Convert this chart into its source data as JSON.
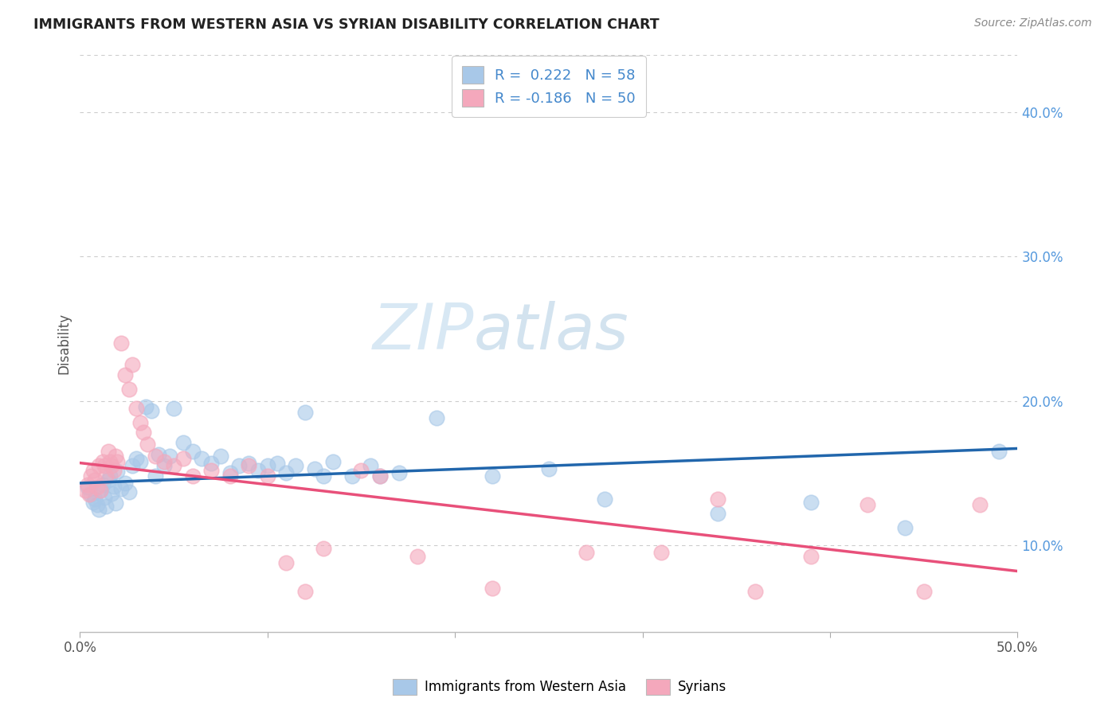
{
  "title": "IMMIGRANTS FROM WESTERN ASIA VS SYRIAN DISABILITY CORRELATION CHART",
  "source": "Source: ZipAtlas.com",
  "ylabel": "Disability",
  "right_yticks": [
    "10.0%",
    "20.0%",
    "30.0%",
    "40.0%"
  ],
  "right_ytick_vals": [
    0.1,
    0.2,
    0.3,
    0.4
  ],
  "xlim": [
    0.0,
    0.5
  ],
  "ylim": [
    0.04,
    0.44
  ],
  "blue_color": "#a8c8e8",
  "pink_color": "#f4a8bc",
  "blue_line_color": "#2166ac",
  "pink_line_color": "#e8507a",
  "watermark_zip": "ZIP",
  "watermark_atlas": "atlas",
  "blue_scatter_x": [
    0.004,
    0.006,
    0.007,
    0.008,
    0.009,
    0.01,
    0.011,
    0.012,
    0.013,
    0.014,
    0.015,
    0.016,
    0.017,
    0.018,
    0.019,
    0.02,
    0.022,
    0.024,
    0.026,
    0.028,
    0.03,
    0.032,
    0.035,
    0.038,
    0.04,
    0.042,
    0.045,
    0.048,
    0.05,
    0.055,
    0.06,
    0.065,
    0.07,
    0.075,
    0.08,
    0.085,
    0.09,
    0.095,
    0.1,
    0.105,
    0.11,
    0.115,
    0.12,
    0.125,
    0.13,
    0.135,
    0.145,
    0.155,
    0.16,
    0.17,
    0.19,
    0.22,
    0.25,
    0.28,
    0.34,
    0.39,
    0.44,
    0.49
  ],
  "blue_scatter_y": [
    0.14,
    0.135,
    0.13,
    0.132,
    0.128,
    0.125,
    0.138,
    0.142,
    0.133,
    0.127,
    0.145,
    0.148,
    0.136,
    0.141,
    0.129,
    0.151,
    0.139,
    0.143,
    0.137,
    0.155,
    0.16,
    0.158,
    0.196,
    0.193,
    0.148,
    0.163,
    0.155,
    0.162,
    0.195,
    0.171,
    0.165,
    0.16,
    0.157,
    0.162,
    0.15,
    0.155,
    0.157,
    0.152,
    0.155,
    0.157,
    0.15,
    0.155,
    0.192,
    0.153,
    0.148,
    0.158,
    0.148,
    0.155,
    0.148,
    0.15,
    0.188,
    0.148,
    0.153,
    0.132,
    0.122,
    0.13,
    0.112,
    0.165
  ],
  "pink_scatter_x": [
    0.003,
    0.004,
    0.005,
    0.006,
    0.007,
    0.008,
    0.009,
    0.01,
    0.011,
    0.012,
    0.013,
    0.014,
    0.015,
    0.016,
    0.017,
    0.018,
    0.019,
    0.02,
    0.022,
    0.024,
    0.026,
    0.028,
    0.03,
    0.032,
    0.034,
    0.036,
    0.04,
    0.045,
    0.05,
    0.055,
    0.06,
    0.07,
    0.08,
    0.09,
    0.1,
    0.11,
    0.12,
    0.13,
    0.15,
    0.16,
    0.18,
    0.22,
    0.27,
    0.31,
    0.34,
    0.36,
    0.39,
    0.42,
    0.45,
    0.48
  ],
  "pink_scatter_y": [
    0.138,
    0.142,
    0.135,
    0.148,
    0.152,
    0.145,
    0.14,
    0.155,
    0.138,
    0.158,
    0.155,
    0.148,
    0.165,
    0.158,
    0.155,
    0.152,
    0.162,
    0.158,
    0.24,
    0.218,
    0.208,
    0.225,
    0.195,
    0.185,
    0.178,
    0.17,
    0.162,
    0.158,
    0.155,
    0.16,
    0.148,
    0.152,
    0.148,
    0.155,
    0.148,
    0.088,
    0.068,
    0.098,
    0.152,
    0.148,
    0.092,
    0.07,
    0.095,
    0.095,
    0.132,
    0.068,
    0.092,
    0.128,
    0.068,
    0.128
  ],
  "blue_trendline": {
    "x_start": 0.0,
    "x_end": 0.5,
    "y_start": 0.143,
    "y_end": 0.167
  },
  "pink_trendline": {
    "x_start": 0.0,
    "x_end": 0.5,
    "y_start": 0.157,
    "y_end": 0.082
  },
  "background_color": "#ffffff",
  "grid_color": "#cccccc"
}
